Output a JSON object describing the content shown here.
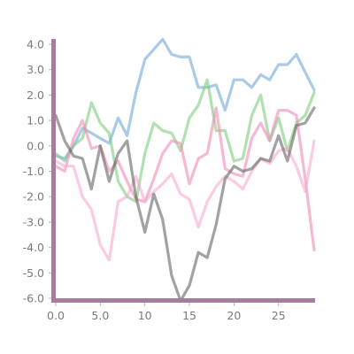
{
  "chart_data": {
    "type": "line",
    "title": "",
    "xlabel": "",
    "ylabel": "",
    "xlim": [
      0,
      29
    ],
    "ylim": [
      -6.0,
      4.0
    ],
    "grid": false,
    "legend": "none",
    "x_ticks": [
      0,
      5,
      10,
      15,
      20,
      25
    ],
    "x_tick_labels": [
      "0.0",
      "5.0",
      "10",
      "15",
      "20",
      "25"
    ],
    "y_ticks": [
      4,
      3,
      2,
      1,
      0,
      -1,
      -2,
      -3,
      -4,
      -5,
      -6
    ],
    "y_tick_labels": [
      "4.0",
      "3.0",
      "2.0",
      "1.0",
      "0.0",
      "-1.0",
      "-2.0",
      "-3.0",
      "-4.0",
      "-5.0",
      "-6.0"
    ],
    "x": [
      0,
      1,
      2,
      3,
      4,
      5,
      6,
      7,
      8,
      9,
      10,
      11,
      12,
      13,
      14,
      15,
      16,
      17,
      18,
      19,
      20,
      21,
      22,
      23,
      24,
      25,
      26,
      27,
      28,
      29
    ],
    "series": [
      {
        "color": "#6fa9d8",
        "values": [
          -0.4,
          -0.5,
          0.0,
          0.7,
          0.5,
          0.3,
          0.1,
          1.1,
          0.4,
          2.1,
          3.4,
          3.8,
          4.2,
          3.6,
          3.5,
          3.5,
          2.3,
          2.3,
          2.4,
          1.4,
          2.6,
          2.6,
          2.3,
          2.8,
          2.6,
          3.2,
          3.2,
          3.6,
          2.9,
          2.2
        ]
      },
      {
        "color": "#7fcc7f",
        "values": [
          -0.3,
          -0.6,
          0.0,
          0.3,
          1.7,
          0.9,
          0.5,
          -1.4,
          -2.0,
          -2.2,
          -0.3,
          0.9,
          0.6,
          0.5,
          -0.2,
          1.1,
          1.6,
          2.6,
          0.6,
          0.6,
          -0.6,
          -0.5,
          1.2,
          2.0,
          0.2,
          1.1,
          -0.2,
          0.9,
          1.2,
          2.1
        ]
      },
      {
        "color": "#f08ab8",
        "values": [
          -0.8,
          -1.0,
          0.3,
          1.0,
          -0.1,
          0.0,
          -1.0,
          -0.6,
          -1.4,
          -2.1,
          -2.2,
          -1.3,
          -0.3,
          0.2,
          0.1,
          -1.5,
          -0.5,
          -0.3,
          1.5,
          -0.9,
          -1.1,
          -1.2,
          0.3,
          0.9,
          0.2,
          1.4,
          1.4,
          1.2,
          -1.3,
          -4.1
        ]
      },
      {
        "color": "#f6a9cf",
        "values": [
          -0.6,
          -0.8,
          -0.8,
          -2.0,
          -2.5,
          -3.9,
          -4.5,
          -2.2,
          -2.0,
          -1.2,
          -2.2,
          -1.8,
          -1.5,
          -1.1,
          -1.9,
          -2.1,
          -3.2,
          -2.2,
          -1.6,
          -1.2,
          -1.4,
          -1.7,
          -1.0,
          -0.5,
          -0.7,
          -0.2,
          -0.1,
          -0.8,
          -1.8,
          0.2
        ]
      },
      {
        "color": "#646464",
        "values": [
          1.2,
          0.2,
          -0.4,
          -0.5,
          -1.7,
          0.0,
          -1.4,
          -0.3,
          0.2,
          -2.0,
          -3.4,
          -1.9,
          -2.9,
          -5.1,
          -6.1,
          -5.5,
          -4.2,
          -4.4,
          -3.1,
          -1.3,
          -0.8,
          -1.0,
          -0.9,
          -0.5,
          -0.6,
          0.4,
          -0.6,
          0.8,
          0.9,
          1.5
        ]
      }
    ]
  }
}
